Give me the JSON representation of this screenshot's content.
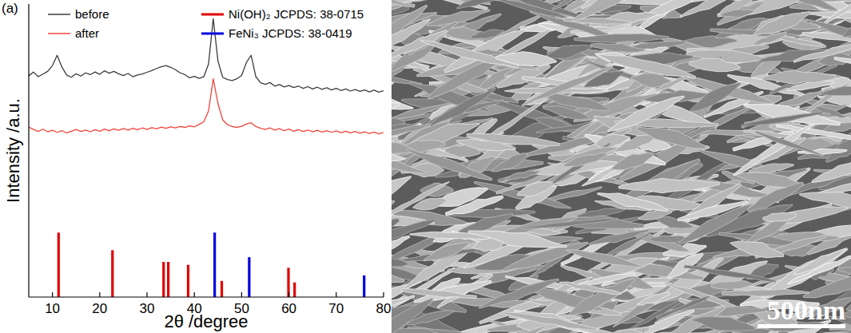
{
  "chart_data": {
    "type": "line",
    "panel_label": "(a)",
    "x_label": "2θ /degree",
    "y_label": "Intensity /a.u.",
    "xlim": [
      5,
      80
    ],
    "xticks": [
      10,
      20,
      30,
      40,
      50,
      60,
      70,
      80
    ],
    "ylim": [
      0,
      100
    ],
    "tick_labels": "x",
    "legend": "top",
    "series": [
      {
        "name": "before",
        "type": "line",
        "color": "#3c3c3c",
        "x": [
          5,
          6,
          7,
          8,
          9,
          10,
          11,
          12,
          13,
          14,
          15,
          16,
          17,
          18,
          19,
          20,
          21,
          22,
          23,
          24,
          25,
          26,
          27,
          28,
          29,
          30,
          31,
          32,
          33,
          34,
          35,
          36,
          37,
          38,
          39,
          40,
          41,
          42,
          43,
          44,
          45,
          46,
          47,
          48,
          49,
          50,
          51,
          52,
          53,
          54,
          55,
          56,
          57,
          58,
          59,
          60,
          61,
          62,
          63,
          64,
          65,
          66,
          67,
          68,
          69,
          70,
          71,
          72,
          73,
          74,
          75,
          76,
          77,
          78,
          79,
          80
        ],
        "values": [
          75.5,
          76.8,
          75.2,
          76.1,
          77.0,
          79.0,
          82.5,
          78.5,
          75.8,
          75.0,
          76.2,
          75.4,
          76.5,
          75.9,
          76.8,
          76.0,
          77.2,
          76.4,
          77.0,
          76.2,
          75.6,
          76.3,
          75.2,
          75.8,
          76.1,
          76.7,
          77.3,
          78.0,
          78.6,
          79.0,
          78.4,
          77.6,
          76.5,
          75.9,
          74.8,
          75.3,
          74.6,
          75.2,
          79.5,
          95.0,
          80.5,
          75.0,
          74.2,
          73.9,
          74.5,
          75.6,
          80.0,
          82.5,
          75.2,
          73.1,
          72.6,
          73.2,
          72.0,
          72.5,
          71.7,
          72.2,
          71.5,
          72.0,
          71.2,
          71.8,
          71.0,
          71.6,
          70.9,
          71.4,
          70.7,
          71.2,
          70.5,
          71.0,
          70.3,
          70.8,
          70.2,
          70.7,
          70.0,
          70.6,
          69.9,
          70.4
        ]
      },
      {
        "name": "after",
        "type": "line",
        "color": "#f0443c",
        "x": [
          5,
          6,
          7,
          8,
          9,
          10,
          11,
          12,
          13,
          14,
          15,
          16,
          17,
          18,
          19,
          20,
          21,
          22,
          23,
          24,
          25,
          26,
          27,
          28,
          29,
          30,
          31,
          32,
          33,
          34,
          35,
          36,
          37,
          38,
          39,
          40,
          41,
          42,
          43,
          44,
          45,
          46,
          47,
          48,
          49,
          50,
          51,
          52,
          53,
          54,
          55,
          56,
          57,
          58,
          59,
          60,
          61,
          62,
          63,
          64,
          65,
          66,
          67,
          68,
          69,
          70,
          71,
          72,
          73,
          74,
          75,
          76,
          77,
          78,
          79,
          80
        ],
        "values": [
          58.0,
          57.2,
          56.5,
          57.3,
          56.4,
          56.9,
          56.2,
          56.8,
          56.0,
          56.6,
          57.2,
          56.5,
          57.0,
          56.4,
          57.1,
          56.6,
          57.3,
          56.8,
          57.4,
          56.9,
          57.5,
          57.0,
          57.6,
          57.1,
          57.7,
          57.2,
          57.8,
          57.4,
          58.0,
          57.6,
          58.1,
          57.7,
          58.2,
          57.9,
          58.4,
          58.1,
          58.9,
          59.8,
          63.5,
          74.5,
          66.0,
          60.5,
          58.8,
          58.2,
          57.9,
          58.3,
          59.0,
          59.5,
          58.2,
          57.6,
          57.2,
          57.7,
          57.0,
          57.5,
          56.8,
          57.3,
          56.6,
          57.1,
          56.5,
          57.0,
          56.4,
          56.9,
          56.3,
          56.8,
          56.2,
          56.7,
          56.1,
          56.6,
          56.0,
          56.5,
          55.9,
          56.4,
          55.8,
          56.3,
          55.7,
          56.2
        ]
      },
      {
        "name": "Ni(OH)₂  JCPDS: 38-0715",
        "type": "stick",
        "color": "#e00000",
        "x": [
          11.3,
          22.7,
          33.5,
          34.5,
          38.7,
          45.8,
          59.9,
          61.2
        ],
        "values": [
          22,
          16,
          12,
          12,
          11,
          5.5,
          10,
          5
        ]
      },
      {
        "name": "FeNi₃   JCPDS: 38-0419",
        "type": "stick",
        "color": "#0000e0",
        "x": [
          44.3,
          51.6,
          75.9
        ],
        "values": [
          22,
          13.6,
          7.4
        ]
      }
    ]
  },
  "image": {
    "scale_bar_label": "500nm"
  }
}
